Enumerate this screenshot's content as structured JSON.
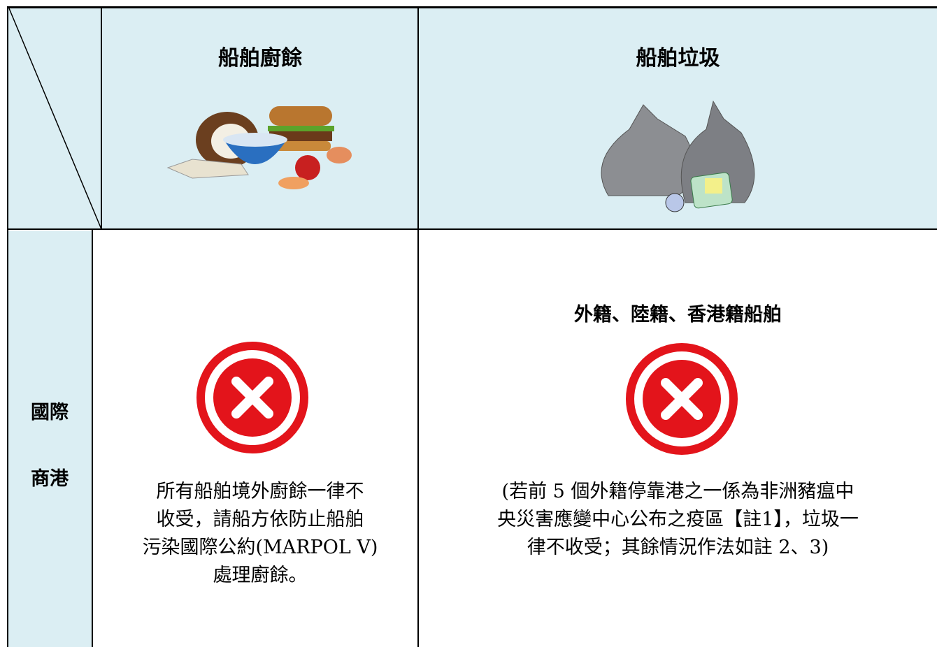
{
  "table": {
    "headers": [
      "船舶廚餘",
      "船舶垃圾"
    ],
    "rows": [
      {
        "label": [
          "國際",
          "商港"
        ],
        "cells": [
          {
            "lines": [
              "所有船舶境外廚餘一律不",
              "收受，請船方依防止船舶",
              "污染國際公約(MARPOL V)",
              "處理廚餘。"
            ]
          },
          {
            "subtitle": "外籍、陸籍、香港籍船舶",
            "lines": [
              "(若前 5 個外籍停靠港之一係為非洲豬瘟中",
              "央災害應變中心公布之疫區【註1】，垃圾一",
              "律不收受；其餘情況作法如註 2、3)"
            ]
          }
        ]
      }
    ]
  }
}
